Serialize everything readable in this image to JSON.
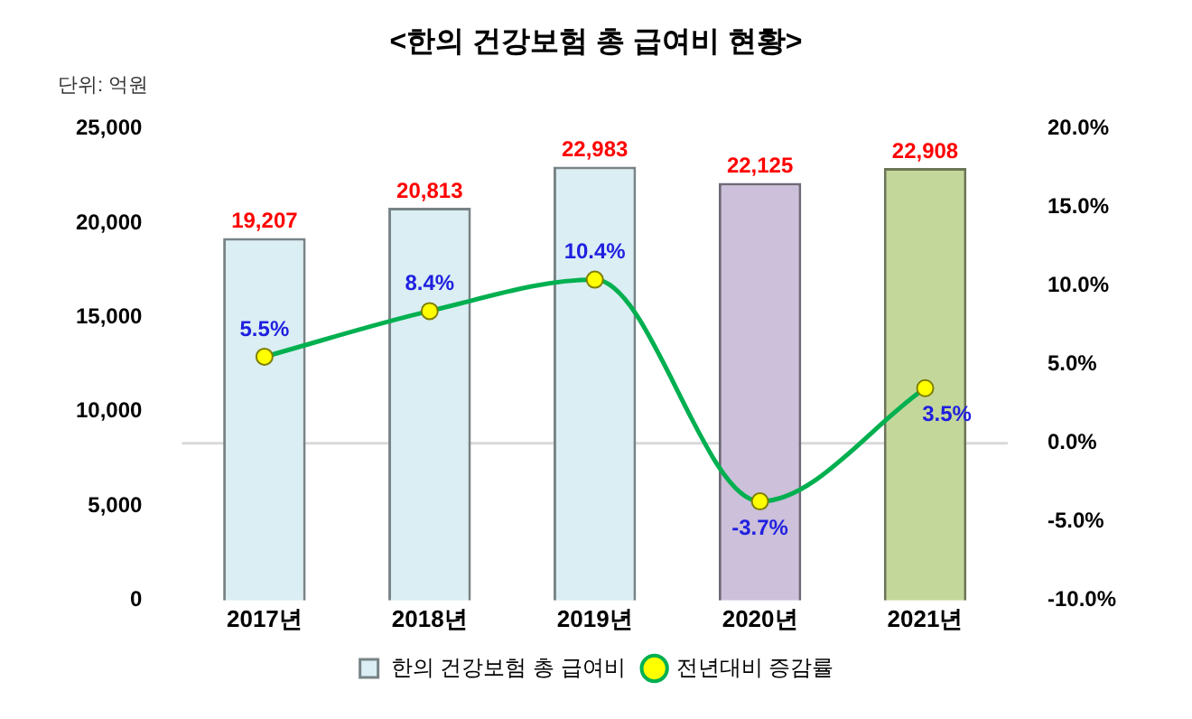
{
  "chart_data": {
    "type": "bar",
    "title": "<한의 건강보험 총 급여비 현황>",
    "annotations": [
      "단위: 억원"
    ],
    "categories": [
      "2017년",
      "2018년",
      "2019년",
      "2020년",
      "2021년"
    ],
    "series": [
      {
        "name": "한의 건강보험 총 급여비",
        "colors": [
          "#daeef3",
          "#daeef3",
          "#daeef3",
          "#ccc0da",
          "#c4d79b"
        ],
        "color": "#daeef3",
        "values": [
          19207,
          20813,
          22983,
          22125,
          22908
        ],
        "value_labels": [
          "19,207",
          "20,813",
          "22,983",
          "22,125",
          "22,908"
        ]
      },
      {
        "name": "전년대비 증감률",
        "type": "line",
        "axis": "y2",
        "color": "#00b050",
        "values": [
          5.5,
          8.4,
          10.4,
          -3.7,
          3.5
        ],
        "value_labels": [
          "5.5%",
          "8.4%",
          "10.4%",
          "-3.7%",
          "3.5%"
        ],
        "marker": "circle"
      }
    ],
    "ylim": [
      0,
      25000
    ],
    "yticks": [
      {
        "value": 0,
        "label": "0"
      },
      {
        "value": 5000,
        "label": "5,000"
      },
      {
        "value": 10000,
        "label": "10,000"
      },
      {
        "value": 15000,
        "label": "15,000"
      },
      {
        "value": 20000,
        "label": "20,000"
      },
      {
        "value": 25000,
        "label": "25,000"
      }
    ],
    "y2lim": [
      -10,
      20
    ],
    "y2ticks": [
      {
        "value": -10,
        "label": "-10.0%"
      },
      {
        "value": -5,
        "label": "-5.0%"
      },
      {
        "value": 0,
        "label": "0.0%"
      },
      {
        "value": 5,
        "label": "5.0%"
      },
      {
        "value": 10,
        "label": "10.0%"
      },
      {
        "value": 15,
        "label": "15.0%"
      },
      {
        "value": 20,
        "label": "20.0%"
      }
    ],
    "ref_lines": [
      {
        "axis": "y2",
        "value": 0,
        "color": "#d9d9d9"
      }
    ],
    "legend": "bottom",
    "grid": false
  }
}
